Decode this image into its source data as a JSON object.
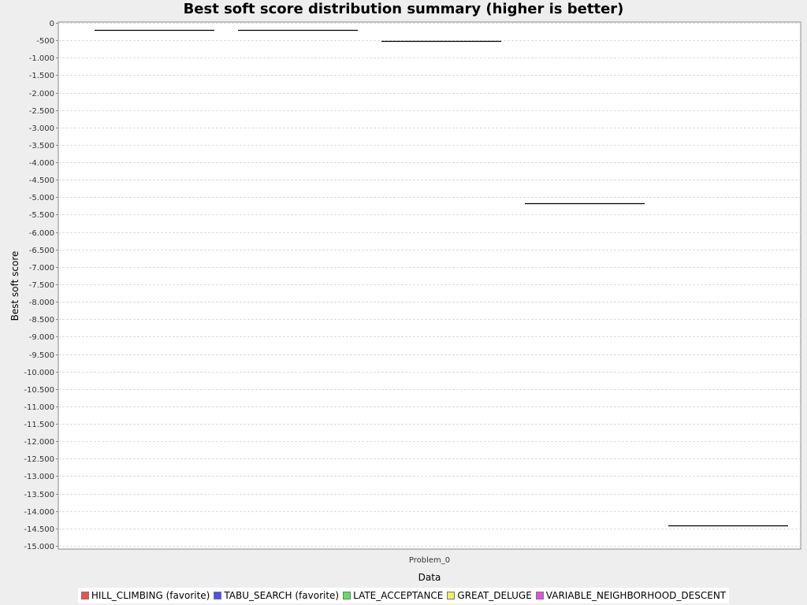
{
  "chart_data": {
    "type": "box",
    "title": "Best soft score distribution summary (higher is better)",
    "xlabel": "Data",
    "ylabel": "Best soft score",
    "categories": [
      "Problem_0"
    ],
    "ylim": [
      -15000,
      0
    ],
    "y_ticks": [
      0,
      -500,
      -1000,
      -1500,
      -2000,
      -2500,
      -3000,
      -3500,
      -4000,
      -4500,
      -5000,
      -5500,
      -6000,
      -6500,
      -7000,
      -7500,
      -8000,
      -8500,
      -9000,
      -9500,
      -10000,
      -10500,
      -11000,
      -11500,
      -12000,
      -12500,
      -13000,
      -13500,
      -14000,
      -14500,
      -15000
    ],
    "y_tick_labels": [
      "0",
      "-500",
      "-1.000",
      "-1.500",
      "-2.000",
      "-2.500",
      "-3.000",
      "-3.500",
      "-4.000",
      "-4.500",
      "-5.000",
      "-5.500",
      "-6.000",
      "-6.500",
      "-7.000",
      "-7.500",
      "-8.000",
      "-8.500",
      "-9.000",
      "-9.500",
      "-10.000",
      "-10.500",
      "-11.000",
      "-11.500",
      "-12.000",
      "-12.500",
      "-13.000",
      "-13.500",
      "-14.000",
      "-14.500",
      "-15.000"
    ],
    "grid": true,
    "legend_position": "bottom",
    "series": [
      {
        "name": "HILL_CLIMBING (favorite)",
        "color": "#f05050",
        "values": [
          -210
        ]
      },
      {
        "name": "TABU_SEARCH (favorite)",
        "color": "#5050f0",
        "values": [
          -210
        ]
      },
      {
        "name": "LATE_ACCEPTANCE",
        "color": "#60e060",
        "values": [
          -510
        ]
      },
      {
        "name": "GREAT_DELUGE",
        "color": "#f0f060",
        "values": [
          -5180
        ]
      },
      {
        "name": "VARIABLE_NEIGHBORHOOD_DESCENT",
        "color": "#e050e0",
        "values": [
          -14410
        ]
      }
    ]
  }
}
